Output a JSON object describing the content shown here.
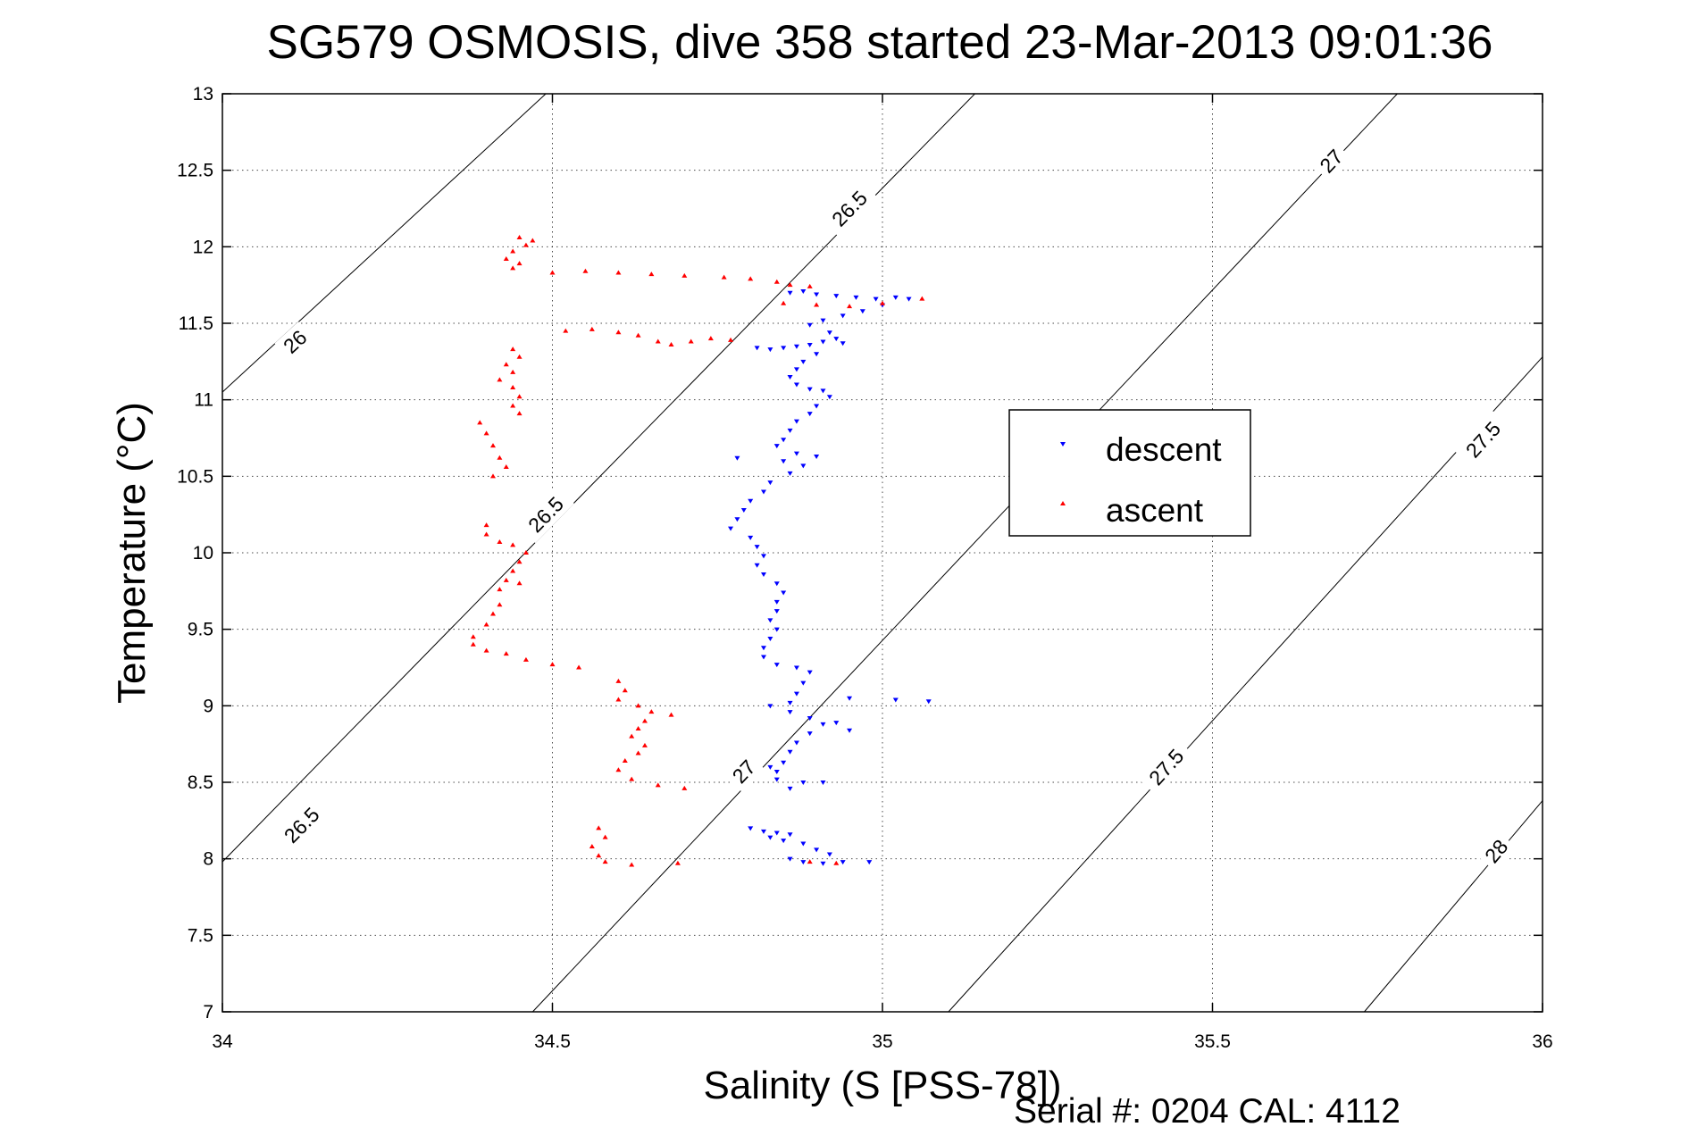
{
  "chart_data": {
    "type": "scatter",
    "title": "SG579 OSMOSIS, dive 358 started 23-Mar-2013 09:01:36",
    "xlabel": "Salinity (S [PSS-78])",
    "ylabel": "Temperature (°C)",
    "xlim": [
      34,
      36
    ],
    "ylim": [
      7,
      13
    ],
    "x_ticks": [
      34,
      34.5,
      35,
      35.5,
      36
    ],
    "x_tick_labels": [
      "34",
      "34.5",
      "35",
      "35.5",
      "36"
    ],
    "y_ticks": [
      7,
      7.5,
      8,
      8.5,
      9,
      9.5,
      10,
      10.5,
      11,
      11.5,
      12,
      12.5,
      13
    ],
    "y_tick_labels": [
      "7",
      "7.5",
      "8",
      "8.5",
      "9",
      "9.5",
      "10",
      "10.5",
      "11",
      "11.5",
      "12",
      "12.5",
      "13"
    ],
    "grid": true,
    "legend_position": "right",
    "footer": "Serial #: 0204  CAL: 4112",
    "series": [
      {
        "name": "descent",
        "color": "#0000ff",
        "marker": "triangle-down",
        "points": [
          [
            34.86,
            11.7
          ],
          [
            34.88,
            11.71
          ],
          [
            34.9,
            11.69
          ],
          [
            34.93,
            11.68
          ],
          [
            34.96,
            11.67
          ],
          [
            34.99,
            11.66
          ],
          [
            35.02,
            11.67
          ],
          [
            35.04,
            11.66
          ],
          [
            35.0,
            11.62
          ],
          [
            34.97,
            11.58
          ],
          [
            34.94,
            11.55
          ],
          [
            34.91,
            11.52
          ],
          [
            34.89,
            11.49
          ],
          [
            34.92,
            11.44
          ],
          [
            34.93,
            11.4
          ],
          [
            34.94,
            11.37
          ],
          [
            34.91,
            11.38
          ],
          [
            34.89,
            11.36
          ],
          [
            34.87,
            11.35
          ],
          [
            34.85,
            11.34
          ],
          [
            34.83,
            11.33
          ],
          [
            34.81,
            11.34
          ],
          [
            34.9,
            11.3
          ],
          [
            34.88,
            11.25
          ],
          [
            34.87,
            11.2
          ],
          [
            34.86,
            11.15
          ],
          [
            34.87,
            11.1
          ],
          [
            34.89,
            11.07
          ],
          [
            34.91,
            11.06
          ],
          [
            34.92,
            11.02
          ],
          [
            34.9,
            10.96
          ],
          [
            34.89,
            10.91
          ],
          [
            34.87,
            10.86
          ],
          [
            34.86,
            10.8
          ],
          [
            34.85,
            10.74
          ],
          [
            34.84,
            10.7
          ],
          [
            34.87,
            10.65
          ],
          [
            34.85,
            10.6
          ],
          [
            34.88,
            10.57
          ],
          [
            34.9,
            10.63
          ],
          [
            34.86,
            10.52
          ],
          [
            34.83,
            10.46
          ],
          [
            34.82,
            10.4
          ],
          [
            34.8,
            10.34
          ],
          [
            34.79,
            10.28
          ],
          [
            34.78,
            10.22
          ],
          [
            34.77,
            10.16
          ],
          [
            34.8,
            10.1
          ],
          [
            34.81,
            10.04
          ],
          [
            34.82,
            9.98
          ],
          [
            34.81,
            9.92
          ],
          [
            34.82,
            9.86
          ],
          [
            34.84,
            9.8
          ],
          [
            34.85,
            9.74
          ],
          [
            34.84,
            9.68
          ],
          [
            34.84,
            9.62
          ],
          [
            34.83,
            9.56
          ],
          [
            34.84,
            9.5
          ],
          [
            34.83,
            9.44
          ],
          [
            34.82,
            9.38
          ],
          [
            34.82,
            9.32
          ],
          [
            34.84,
            9.27
          ],
          [
            34.87,
            9.25
          ],
          [
            34.89,
            9.22
          ],
          [
            34.88,
            9.15
          ],
          [
            34.87,
            9.08
          ],
          [
            34.86,
            9.02
          ],
          [
            34.86,
            8.96
          ],
          [
            34.89,
            8.92
          ],
          [
            34.91,
            8.88
          ],
          [
            34.89,
            8.82
          ],
          [
            34.87,
            8.76
          ],
          [
            34.86,
            8.7
          ],
          [
            34.85,
            8.63
          ],
          [
            34.84,
            8.57
          ],
          [
            34.84,
            8.52
          ],
          [
            34.88,
            8.5
          ],
          [
            34.91,
            8.5
          ],
          [
            34.86,
            8.46
          ],
          [
            34.8,
            8.2
          ],
          [
            34.82,
            8.18
          ],
          [
            34.84,
            8.17
          ],
          [
            34.86,
            8.16
          ],
          [
            34.83,
            8.14
          ],
          [
            34.85,
            8.12
          ],
          [
            34.88,
            8.1
          ],
          [
            34.9,
            8.06
          ],
          [
            34.92,
            8.03
          ],
          [
            34.86,
            8.0
          ],
          [
            34.88,
            7.98
          ],
          [
            34.91,
            7.97
          ],
          [
            34.94,
            7.98
          ],
          [
            34.98,
            7.98
          ],
          [
            34.78,
            10.62
          ],
          [
            34.83,
            9.0
          ],
          [
            34.93,
            8.89
          ],
          [
            34.95,
            8.84
          ],
          [
            34.95,
            9.05
          ],
          [
            35.02,
            9.04
          ],
          [
            35.07,
            9.03
          ],
          [
            34.83,
            8.6
          ]
        ]
      },
      {
        "name": "ascent",
        "color": "#ff0000",
        "marker": "triangle-up",
        "points": [
          [
            34.45,
            12.06
          ],
          [
            34.47,
            12.04
          ],
          [
            34.46,
            12.01
          ],
          [
            34.44,
            11.97
          ],
          [
            34.43,
            11.92
          ],
          [
            34.45,
            11.89
          ],
          [
            34.44,
            11.86
          ],
          [
            34.5,
            11.83
          ],
          [
            34.55,
            11.84
          ],
          [
            34.6,
            11.83
          ],
          [
            34.65,
            11.82
          ],
          [
            34.7,
            11.81
          ],
          [
            34.76,
            11.8
          ],
          [
            34.8,
            11.79
          ],
          [
            34.84,
            11.77
          ],
          [
            34.86,
            11.75
          ],
          [
            34.89,
            11.74
          ],
          [
            34.85,
            11.63
          ],
          [
            34.9,
            11.62
          ],
          [
            34.95,
            11.61
          ],
          [
            35.0,
            11.63
          ],
          [
            35.06,
            11.66
          ],
          [
            34.52,
            11.45
          ],
          [
            34.56,
            11.46
          ],
          [
            34.6,
            11.44
          ],
          [
            34.63,
            11.42
          ],
          [
            34.66,
            11.38
          ],
          [
            34.68,
            11.36
          ],
          [
            34.71,
            11.38
          ],
          [
            34.74,
            11.4
          ],
          [
            34.77,
            11.39
          ],
          [
            34.44,
            11.33
          ],
          [
            34.45,
            11.28
          ],
          [
            34.43,
            11.23
          ],
          [
            34.44,
            11.18
          ],
          [
            34.42,
            11.13
          ],
          [
            34.44,
            11.08
          ],
          [
            34.45,
            11.02
          ],
          [
            34.44,
            10.96
          ],
          [
            34.45,
            10.91
          ],
          [
            34.39,
            10.85
          ],
          [
            34.4,
            10.78
          ],
          [
            34.41,
            10.7
          ],
          [
            34.42,
            10.62
          ],
          [
            34.43,
            10.56
          ],
          [
            34.41,
            10.5
          ],
          [
            34.4,
            10.18
          ],
          [
            34.4,
            10.12
          ],
          [
            34.42,
            10.07
          ],
          [
            34.44,
            10.05
          ],
          [
            34.46,
            10.0
          ],
          [
            34.45,
            9.94
          ],
          [
            34.44,
            9.88
          ],
          [
            34.43,
            9.82
          ],
          [
            34.42,
            9.76
          ],
          [
            34.45,
            9.8
          ],
          [
            34.42,
            9.66
          ],
          [
            34.41,
            9.6
          ],
          [
            34.4,
            9.53
          ],
          [
            34.38,
            9.45
          ],
          [
            34.38,
            9.4
          ],
          [
            34.4,
            9.36
          ],
          [
            34.43,
            9.34
          ],
          [
            34.46,
            9.3
          ],
          [
            34.5,
            9.27
          ],
          [
            34.54,
            9.25
          ],
          [
            34.6,
            9.16
          ],
          [
            34.61,
            9.1
          ],
          [
            34.6,
            9.04
          ],
          [
            34.63,
            9.0
          ],
          [
            34.65,
            8.96
          ],
          [
            34.68,
            8.94
          ],
          [
            34.64,
            8.9
          ],
          [
            34.63,
            8.85
          ],
          [
            34.62,
            8.8
          ],
          [
            34.64,
            8.74
          ],
          [
            34.63,
            8.69
          ],
          [
            34.61,
            8.64
          ],
          [
            34.6,
            8.58
          ],
          [
            34.62,
            8.52
          ],
          [
            34.66,
            8.48
          ],
          [
            34.7,
            8.46
          ],
          [
            34.57,
            8.2
          ],
          [
            34.58,
            8.14
          ],
          [
            34.56,
            8.08
          ],
          [
            34.57,
            8.02
          ],
          [
            34.58,
            7.98
          ],
          [
            34.62,
            7.96
          ],
          [
            34.69,
            7.97
          ],
          [
            34.93,
            7.97
          ],
          [
            34.89,
            7.98
          ]
        ]
      }
    ],
    "density_contours": [
      {
        "label": "26",
        "x": [
          34.0,
          34.49
        ],
        "y": [
          11.05,
          13.0
        ],
        "label_at": [
          34.11,
          11.38
        ]
      },
      {
        "label": "26.5",
        "x": [
          34.0,
          35.14
        ],
        "y": [
          7.98,
          13.0
        ],
        "label_at": [
          34.12,
          8.22
        ],
        "extra_labels": [
          [
            34.49,
            10.25
          ],
          [
            34.95,
            12.25
          ]
        ]
      },
      {
        "label": "27",
        "x": [
          34.47,
          35.78
        ],
        "y": [
          7.0,
          13.0
        ],
        "label_at": [
          34.79,
          8.57
        ],
        "extra_labels": [
          [
            35.68,
            12.56
          ]
        ]
      },
      {
        "label": "27.5",
        "x": [
          35.1,
          36.0
        ],
        "y": [
          7.0,
          11.28
        ],
        "label_at": [
          35.43,
          8.6
        ],
        "extra_labels": [
          [
            35.91,
            10.74
          ]
        ]
      },
      {
        "label": "28",
        "x": [
          35.73,
          36.0
        ],
        "y": [
          7.0,
          8.38
        ],
        "label_at": [
          35.93,
          8.05
        ]
      }
    ]
  }
}
